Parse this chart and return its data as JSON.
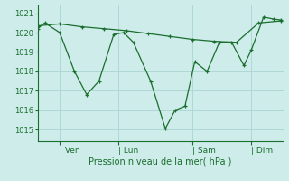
{
  "background_color": "#ceecea",
  "grid_color": "#afd8d4",
  "line_color": "#1a6e2e",
  "xlabel": "Pression niveau de la mer( hPa )",
  "ylim": [
    1014.4,
    1021.4
  ],
  "yticks": [
    1015,
    1016,
    1017,
    1018,
    1019,
    1020,
    1021
  ],
  "xlim": [
    0,
    10.0
  ],
  "xtick_labels": [
    "| Ven",
    "| Lun",
    "| Sam",
    "| Dim"
  ],
  "xtick_positions": [
    0.9,
    3.3,
    6.3,
    8.7
  ],
  "line1_x": [
    0.0,
    0.3,
    0.9,
    1.5,
    2.0,
    2.5,
    3.1,
    3.5,
    3.9,
    4.6,
    5.2,
    5.6,
    6.0,
    6.4,
    6.9,
    7.4,
    7.9,
    8.4,
    8.7,
    9.2,
    9.6,
    9.9
  ],
  "line1_y": [
    1020.2,
    1020.5,
    1020.0,
    1018.0,
    1016.8,
    1017.5,
    1019.9,
    1020.0,
    1019.5,
    1017.5,
    1015.05,
    1016.0,
    1016.2,
    1018.5,
    1018.0,
    1019.5,
    1019.5,
    1018.3,
    1019.1,
    1020.8,
    1020.7,
    1020.65
  ],
  "line2_x": [
    0.0,
    0.9,
    1.8,
    2.7,
    3.6,
    4.5,
    5.4,
    6.3,
    7.2,
    8.1,
    9.0,
    9.9
  ],
  "line2_y": [
    1020.35,
    1020.45,
    1020.3,
    1020.2,
    1020.1,
    1019.95,
    1019.8,
    1019.65,
    1019.55,
    1019.5,
    1020.5,
    1020.6
  ]
}
